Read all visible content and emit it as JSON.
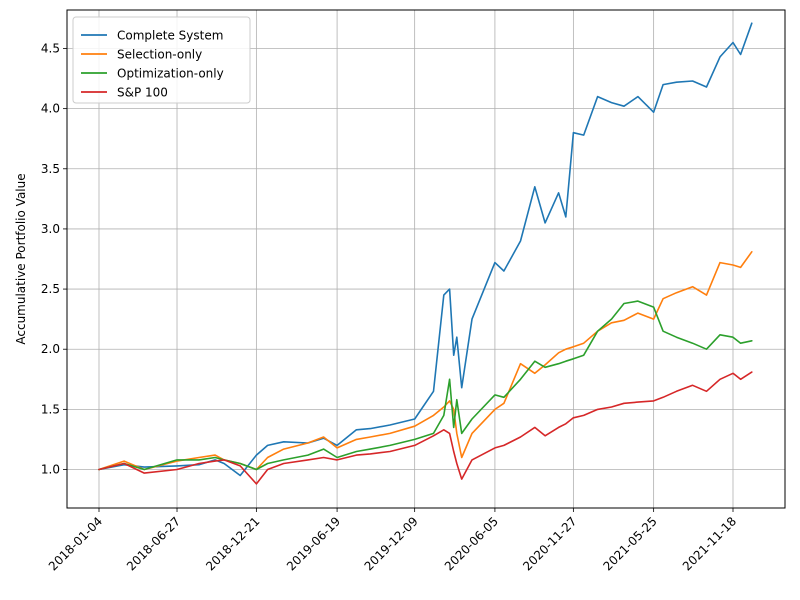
{
  "chart_data": {
    "type": "line",
    "title": "",
    "xlabel": "",
    "ylabel": "Accumulative Portfolio Value",
    "x_tick_labels": [
      "2018-01-04",
      "2018-06-27",
      "2018-12-21",
      "2019-06-19",
      "2019-12-09",
      "2020-06-05",
      "2020-11-27",
      "2021-05-25",
      "2021-11-18"
    ],
    "y_ticks": [
      1.0,
      1.5,
      2.0,
      2.5,
      3.0,
      3.5,
      4.0,
      4.5
    ],
    "y_tick_labels": [
      "1.0",
      "1.5",
      "2.0",
      "2.5",
      "3.0",
      "3.5",
      "4.0",
      "4.5"
    ],
    "ylim": [
      0.68,
      4.82
    ],
    "grid": true,
    "legend_position": "top-left",
    "x": [
      "2018-01-04",
      "2018-03-01",
      "2018-04-15",
      "2018-06-27",
      "2018-08-15",
      "2018-09-20",
      "2018-10-10",
      "2018-11-15",
      "2018-12-21",
      "2019-01-15",
      "2019-02-20",
      "2019-04-15",
      "2019-05-20",
      "2019-06-19",
      "2019-08-01",
      "2019-09-01",
      "2019-10-15",
      "2019-12-09",
      "2020-01-20",
      "2020-02-12",
      "2020-02-25",
      "2020-03-05",
      "2020-03-12",
      "2020-03-23",
      "2020-04-15",
      "2020-06-05",
      "2020-06-25",
      "2020-08-01",
      "2020-09-02",
      "2020-09-25",
      "2020-10-25",
      "2020-11-10",
      "2020-11-27",
      "2020-12-20",
      "2021-01-20",
      "2021-02-20",
      "2021-03-20",
      "2021-04-20",
      "2021-05-25",
      "2021-06-15",
      "2021-07-15",
      "2021-08-20",
      "2021-09-20",
      "2021-10-20",
      "2021-11-18",
      "2021-12-05",
      "2021-12-30"
    ],
    "series": [
      {
        "name": "Complete System",
        "color": "#1f77b4",
        "values": [
          1.0,
          1.04,
          1.02,
          1.03,
          1.04,
          1.08,
          1.05,
          0.95,
          1.12,
          1.2,
          1.23,
          1.22,
          1.26,
          1.2,
          1.33,
          1.34,
          1.37,
          1.42,
          1.65,
          2.45,
          2.5,
          1.95,
          2.1,
          1.68,
          2.25,
          2.72,
          2.65,
          2.9,
          3.35,
          3.05,
          3.3,
          3.1,
          3.8,
          3.78,
          4.1,
          4.05,
          4.02,
          4.1,
          3.97,
          4.2,
          4.22,
          4.23,
          4.18,
          4.43,
          4.55,
          4.45,
          4.71
        ]
      },
      {
        "name": "Selection-only",
        "color": "#ff7f0e",
        "values": [
          1.0,
          1.07,
          1.0,
          1.07,
          1.1,
          1.12,
          1.08,
          1.05,
          1.0,
          1.1,
          1.17,
          1.22,
          1.27,
          1.18,
          1.25,
          1.27,
          1.3,
          1.36,
          1.45,
          1.52,
          1.57,
          1.5,
          1.3,
          1.1,
          1.3,
          1.5,
          1.55,
          1.88,
          1.8,
          1.87,
          1.97,
          2.0,
          2.02,
          2.05,
          2.15,
          2.22,
          2.24,
          2.3,
          2.25,
          2.42,
          2.47,
          2.52,
          2.45,
          2.72,
          2.7,
          2.68,
          2.81
        ]
      },
      {
        "name": "Optimization-only",
        "color": "#2ca02c",
        "values": [
          1.0,
          1.05,
          1.0,
          1.08,
          1.08,
          1.1,
          1.08,
          1.05,
          1.0,
          1.05,
          1.08,
          1.12,
          1.17,
          1.1,
          1.15,
          1.17,
          1.2,
          1.25,
          1.3,
          1.45,
          1.75,
          1.35,
          1.58,
          1.3,
          1.42,
          1.62,
          1.6,
          1.75,
          1.9,
          1.85,
          1.88,
          1.9,
          1.92,
          1.95,
          2.15,
          2.25,
          2.38,
          2.4,
          2.35,
          2.15,
          2.1,
          2.05,
          2.0,
          2.12,
          2.1,
          2.05,
          2.07
        ]
      },
      {
        "name": "S&P 100",
        "color": "#d62728",
        "values": [
          1.0,
          1.05,
          0.97,
          1.0,
          1.05,
          1.07,
          1.08,
          1.03,
          0.88,
          1.0,
          1.05,
          1.08,
          1.1,
          1.08,
          1.12,
          1.13,
          1.15,
          1.2,
          1.28,
          1.33,
          1.3,
          1.15,
          1.05,
          0.92,
          1.08,
          1.18,
          1.2,
          1.27,
          1.35,
          1.28,
          1.35,
          1.38,
          1.43,
          1.45,
          1.5,
          1.52,
          1.55,
          1.56,
          1.57,
          1.6,
          1.65,
          1.7,
          1.65,
          1.75,
          1.8,
          1.75,
          1.81
        ]
      }
    ]
  }
}
